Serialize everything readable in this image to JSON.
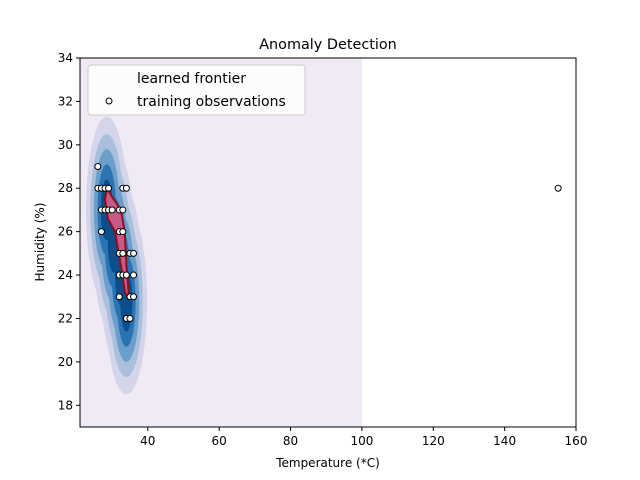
{
  "chart_data": {
    "type": "scatter",
    "title": "Anomaly Detection",
    "xlabel": "Temperature (*C)",
    "ylabel": "Humidity (%)",
    "xlim": [
      21,
      160
    ],
    "ylim": [
      17,
      34
    ],
    "x_ticks": [
      40,
      60,
      80,
      100,
      120,
      140,
      160
    ],
    "y_ticks": [
      18,
      20,
      22,
      24,
      26,
      28,
      30,
      32,
      34
    ],
    "grid": false,
    "legend_position": "top-left",
    "legend": [
      {
        "label": "learned frontier"
      },
      {
        "label": "training observations"
      }
    ],
    "background_region": {
      "x_range": [
        21,
        100
      ],
      "y_range": [
        17,
        34
      ],
      "color": "#f0eaf4"
    },
    "density_levels": [
      {
        "color": "#d4d4ea",
        "rx": 5.8,
        "ry": 4.3
      },
      {
        "color": "#a9bfdc",
        "rx": 4.6,
        "ry": 3.5
      },
      {
        "color": "#6b9ecb",
        "rx": 3.6,
        "ry": 2.8
      },
      {
        "color": "#2b74b4",
        "rx": 2.6,
        "ry": 2.1
      },
      {
        "color": "#0b4f8a",
        "rx": 1.7,
        "ry": 1.4
      }
    ],
    "density_centers": [
      {
        "x": 28.5,
        "y": 27.0
      },
      {
        "x": 30.5,
        "y": 25.5
      },
      {
        "x": 32.5,
        "y": 24.0
      },
      {
        "x": 34.0,
        "y": 22.8
      }
    ],
    "frontier_polygon": [
      {
        "x": 28.6,
        "y": 28.0
      },
      {
        "x": 30.0,
        "y": 27.6
      },
      {
        "x": 32.5,
        "y": 27.0
      },
      {
        "x": 33.5,
        "y": 26.0
      },
      {
        "x": 34.0,
        "y": 24.5
      },
      {
        "x": 34.6,
        "y": 23.3
      },
      {
        "x": 34.6,
        "y": 22.9
      },
      {
        "x": 33.6,
        "y": 23.2
      },
      {
        "x": 32.6,
        "y": 24.3
      },
      {
        "x": 30.8,
        "y": 26.0
      },
      {
        "x": 28.8,
        "y": 26.6
      },
      {
        "x": 28.0,
        "y": 27.5
      }
    ],
    "frontier_fill": "#c95a88",
    "frontier_stroke": "#8b0f1f",
    "density_bounds": {
      "x_range": [
        21,
        100
      ],
      "y_range": [
        17,
        34
      ]
    },
    "points": [
      {
        "x": 26,
        "y": 29
      },
      {
        "x": 26,
        "y": 28
      },
      {
        "x": 27,
        "y": 28
      },
      {
        "x": 28,
        "y": 28
      },
      {
        "x": 29,
        "y": 28
      },
      {
        "x": 33,
        "y": 28
      },
      {
        "x": 34,
        "y": 28
      },
      {
        "x": 27,
        "y": 27
      },
      {
        "x": 28,
        "y": 27
      },
      {
        "x": 29,
        "y": 27
      },
      {
        "x": 30,
        "y": 27
      },
      {
        "x": 32,
        "y": 27
      },
      {
        "x": 33,
        "y": 27
      },
      {
        "x": 27,
        "y": 26
      },
      {
        "x": 32,
        "y": 26
      },
      {
        "x": 33,
        "y": 26
      },
      {
        "x": 32,
        "y": 25
      },
      {
        "x": 33,
        "y": 25
      },
      {
        "x": 35,
        "y": 25
      },
      {
        "x": 36,
        "y": 25
      },
      {
        "x": 32,
        "y": 24
      },
      {
        "x": 33,
        "y": 24
      },
      {
        "x": 34,
        "y": 24
      },
      {
        "x": 36,
        "y": 24
      },
      {
        "x": 32,
        "y": 23
      },
      {
        "x": 35,
        "y": 23
      },
      {
        "x": 36,
        "y": 23
      },
      {
        "x": 34,
        "y": 22
      },
      {
        "x": 35,
        "y": 22
      },
      {
        "x": 155,
        "y": 28
      }
    ]
  }
}
